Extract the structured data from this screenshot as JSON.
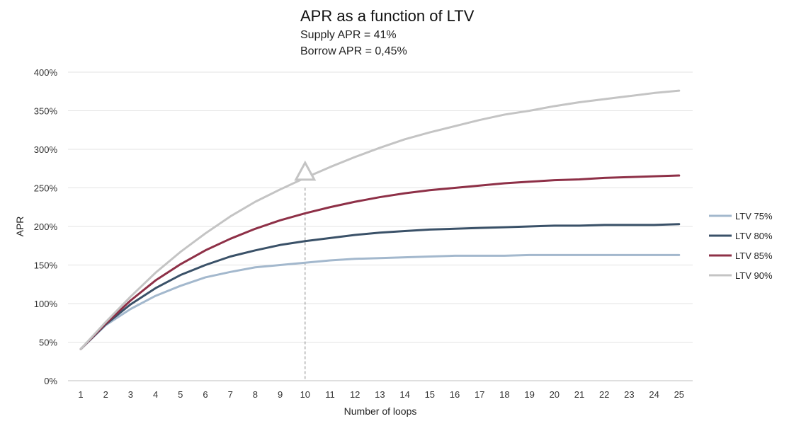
{
  "chart_data": {
    "type": "line",
    "title": "APR as a function of LTV",
    "subtitle_lines": [
      "Supply APR = 41%",
      "Borrow APR = 0,45%"
    ],
    "xlabel": "Number of loops",
    "ylabel": "APR",
    "x": [
      1,
      2,
      3,
      4,
      5,
      6,
      7,
      8,
      9,
      10,
      11,
      12,
      13,
      14,
      15,
      16,
      17,
      18,
      19,
      20,
      21,
      22,
      23,
      24,
      25
    ],
    "ylim": [
      0,
      400
    ],
    "yticks": [
      0,
      50,
      100,
      150,
      200,
      250,
      300,
      350,
      400
    ],
    "ytick_labels": [
      "0%",
      "50%",
      "100%",
      "150%",
      "200%",
      "250%",
      "300%",
      "350%",
      "400%"
    ],
    "grid": true,
    "legend_position": "right",
    "series": [
      {
        "name": "LTV 75%",
        "color": "#a3b8cd",
        "values": [
          41,
          72,
          93,
          110,
          123,
          134,
          141,
          147,
          150,
          153,
          156,
          158,
          159,
          160,
          161,
          162,
          162,
          162,
          163,
          163,
          163,
          163,
          163,
          163,
          163
        ]
      },
      {
        "name": "LTV 80%",
        "color": "#3a5168",
        "values": [
          41,
          73,
          99,
          120,
          137,
          150,
          161,
          169,
          176,
          181,
          185,
          189,
          192,
          194,
          196,
          197,
          198,
          199,
          200,
          201,
          201,
          202,
          202,
          202,
          203
        ]
      },
      {
        "name": "LTV 85%",
        "color": "#8e3047",
        "values": [
          41,
          74,
          104,
          130,
          151,
          169,
          184,
          197,
          208,
          217,
          225,
          232,
          238,
          243,
          247,
          250,
          253,
          256,
          258,
          260,
          261,
          263,
          264,
          265,
          266
        ]
      },
      {
        "name": "LTV 90%",
        "color": "#c4c4c4",
        "values": [
          41,
          76,
          109,
          140,
          167,
          191,
          213,
          232,
          248,
          263,
          277,
          290,
          302,
          313,
          322,
          330,
          338,
          345,
          350,
          356,
          361,
          365,
          369,
          373,
          376
        ]
      }
    ],
    "annotations": [
      {
        "type": "dashed-vertical-line",
        "x": 10,
        "color": "#888888"
      },
      {
        "type": "triangle-marker",
        "x": 10,
        "y": 268,
        "series": "LTV 90%",
        "color": "#c4c4c4"
      }
    ]
  }
}
